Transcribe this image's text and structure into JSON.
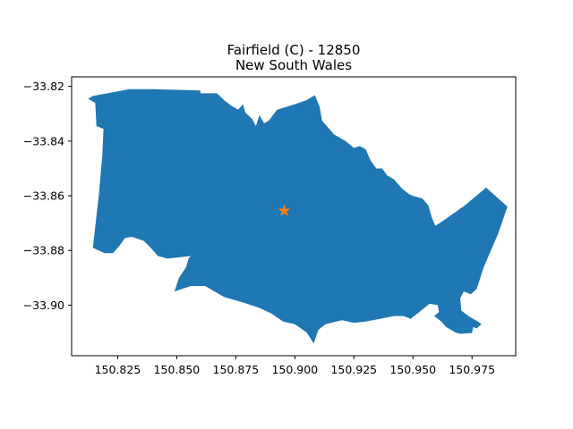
{
  "title": {
    "line1": "Fairfield (C) - 12850",
    "line2": "New South Wales"
  },
  "chart_data": {
    "type": "map",
    "crs": "lon/lat (degrees)",
    "xlim": [
      150.8055,
      150.9935
    ],
    "ylim": [
      -33.9185,
      -33.8165
    ],
    "x_ticks": [
      150.825,
      150.85,
      150.875,
      150.9,
      150.925,
      150.95,
      150.975
    ],
    "x_tick_labels": [
      "150.825",
      "150.850",
      "150.875",
      "150.900",
      "150.925",
      "150.950",
      "150.975"
    ],
    "y_ticks": [
      -33.82,
      -33.84,
      -33.86,
      -33.88,
      -33.9
    ],
    "y_tick_labels": [
      "−33.82",
      "−33.84",
      "−33.86",
      "−33.88",
      "−33.90"
    ],
    "region": {
      "fill": "#1f77b4",
      "boundary": [
        [
          150.8125,
          -33.8245
        ],
        [
          150.8145,
          -33.8235
        ],
        [
          150.83,
          -33.821
        ],
        [
          150.84,
          -33.821
        ],
        [
          150.86,
          -33.8215
        ],
        [
          150.86,
          -33.8225
        ],
        [
          150.867,
          -33.8225
        ],
        [
          150.87,
          -33.825
        ],
        [
          150.873,
          -33.827
        ],
        [
          150.876,
          -33.8285
        ],
        [
          150.878,
          -33.8265
        ],
        [
          150.879,
          -33.8295
        ],
        [
          150.882,
          -33.832
        ],
        [
          150.8835,
          -33.8345
        ],
        [
          150.885,
          -33.8305
        ],
        [
          150.887,
          -33.8335
        ],
        [
          150.889,
          -33.8325
        ],
        [
          150.8925,
          -33.8285
        ],
        [
          150.9,
          -33.8265
        ],
        [
          150.905,
          -33.825
        ],
        [
          150.9085,
          -33.8232
        ],
        [
          150.9105,
          -33.8275
        ],
        [
          150.9115,
          -33.8325
        ],
        [
          150.9165,
          -33.8375
        ],
        [
          150.9215,
          -33.84
        ],
        [
          150.925,
          -33.8425
        ],
        [
          150.9275,
          -33.8418
        ],
        [
          150.93,
          -33.843
        ],
        [
          150.932,
          -33.847
        ],
        [
          150.9345,
          -33.85
        ],
        [
          150.937,
          -33.85
        ],
        [
          150.939,
          -33.8525
        ],
        [
          150.942,
          -33.854
        ],
        [
          150.9455,
          -33.8575
        ],
        [
          150.9485,
          -33.8595
        ],
        [
          150.95,
          -33.86
        ],
        [
          150.954,
          -33.861
        ],
        [
          150.9565,
          -33.8635
        ],
        [
          150.958,
          -33.868
        ],
        [
          150.9595,
          -33.871
        ],
        [
          150.963,
          -33.869
        ],
        [
          150.972,
          -33.8635
        ],
        [
          150.981,
          -33.857
        ],
        [
          150.99,
          -33.864
        ],
        [
          150.986,
          -33.874
        ],
        [
          150.98,
          -33.886
        ],
        [
          150.977,
          -33.894
        ],
        [
          150.9745,
          -33.896
        ],
        [
          150.9715,
          -33.895
        ],
        [
          150.97,
          -33.8975
        ],
        [
          150.9705,
          -33.902
        ],
        [
          150.9735,
          -33.904
        ],
        [
          150.9775,
          -33.906
        ],
        [
          150.979,
          -33.907
        ],
        [
          150.977,
          -33.9085
        ],
        [
          150.9755,
          -33.908
        ],
        [
          150.975,
          -33.9102
        ],
        [
          150.97,
          -33.9105
        ],
        [
          150.968,
          -33.91
        ],
        [
          150.964,
          -33.908
        ],
        [
          150.962,
          -33.906
        ],
        [
          150.959,
          -33.904
        ],
        [
          150.961,
          -33.9025
        ],
        [
          150.9605,
          -33.9
        ],
        [
          150.957,
          -33.8995
        ],
        [
          150.952,
          -33.903
        ],
        [
          150.949,
          -33.905
        ],
        [
          150.946,
          -33.904
        ],
        [
          150.942,
          -33.904
        ],
        [
          150.936,
          -33.905
        ],
        [
          150.93,
          -33.906
        ],
        [
          150.925,
          -33.9065
        ],
        [
          150.92,
          -33.9055
        ],
        [
          150.913,
          -33.907
        ],
        [
          150.91,
          -33.909
        ],
        [
          150.908,
          -33.914
        ],
        [
          150.905,
          -33.91
        ],
        [
          150.9,
          -33.907
        ],
        [
          150.895,
          -33.906
        ],
        [
          150.89,
          -33.903
        ],
        [
          150.885,
          -33.901
        ],
        [
          150.878,
          -33.899
        ],
        [
          150.87,
          -33.897
        ],
        [
          150.862,
          -33.893
        ],
        [
          150.856,
          -33.893
        ],
        [
          150.849,
          -33.895
        ],
        [
          150.851,
          -33.89
        ],
        [
          150.854,
          -33.886
        ],
        [
          150.855,
          -33.883
        ],
        [
          150.856,
          -33.882
        ],
        [
          150.846,
          -33.883
        ],
        [
          150.842,
          -33.882
        ],
        [
          150.839,
          -33.879
        ],
        [
          150.836,
          -33.8765
        ],
        [
          150.831,
          -33.875
        ],
        [
          150.828,
          -33.8755
        ],
        [
          150.826,
          -33.878
        ],
        [
          150.823,
          -33.881
        ],
        [
          150.8195,
          -33.881
        ],
        [
          150.817,
          -33.88
        ],
        [
          150.8145,
          -33.879
        ],
        [
          150.817,
          -33.86
        ],
        [
          150.8185,
          -33.845
        ],
        [
          150.819,
          -33.8355
        ],
        [
          150.816,
          -33.8345
        ],
        [
          150.8155,
          -33.826
        ],
        [
          150.8125,
          -33.8245
        ]
      ]
    },
    "marker": {
      "symbol": "star",
      "color": "#ff7f0e",
      "x": 150.8955,
      "y": -33.8655
    }
  }
}
